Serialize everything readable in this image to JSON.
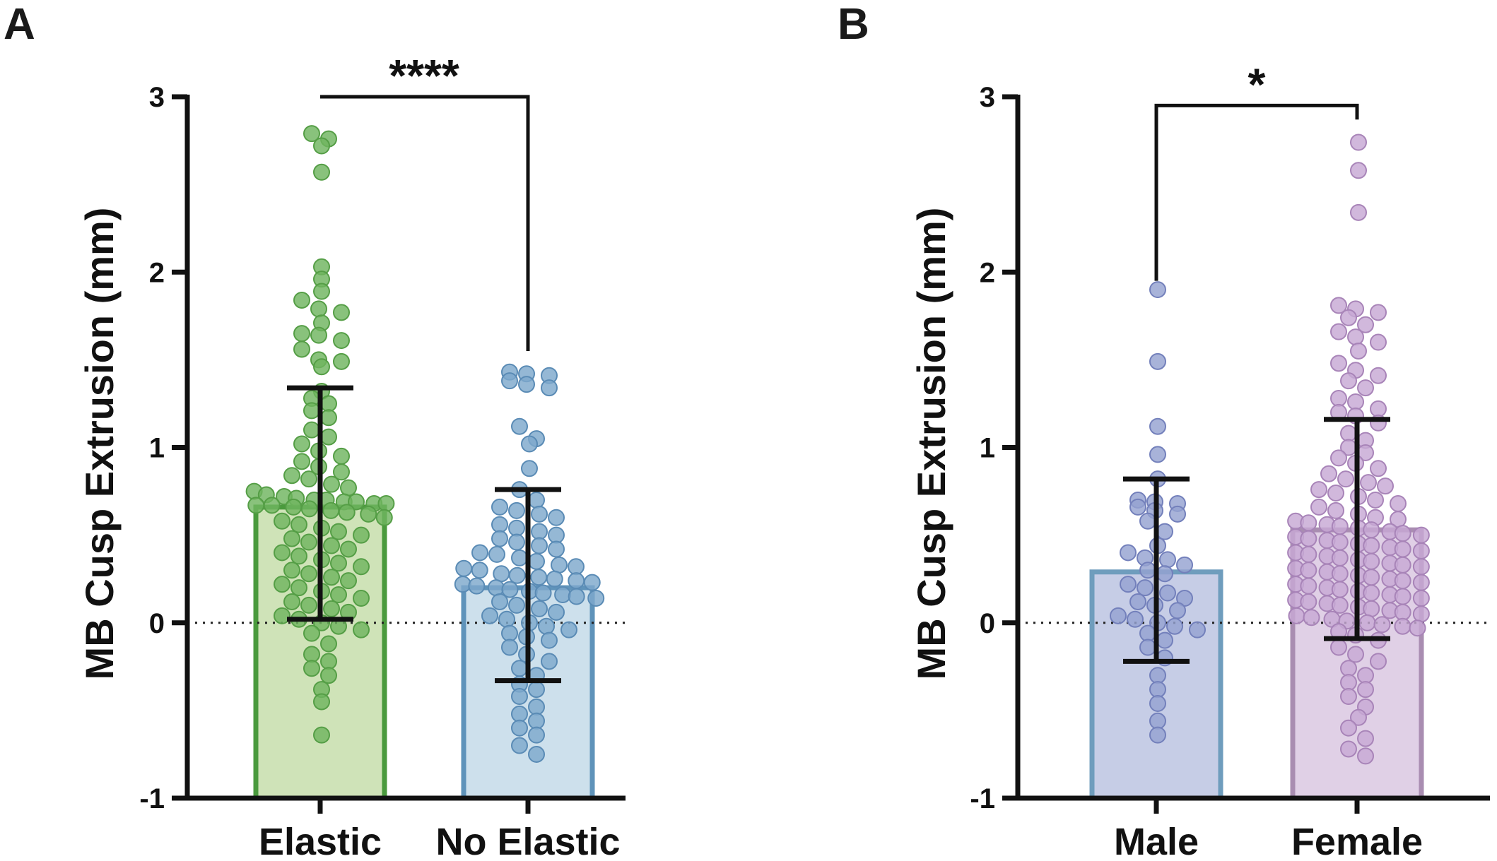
{
  "chart_data": [
    {
      "type": "bar",
      "panel": "A",
      "ylabel": "MB Cusp Extrusion (mm)",
      "ylim": [
        -1,
        3
      ],
      "yticks": [
        "-1",
        "0",
        "1",
        "2",
        "3"
      ],
      "reference_line": 0,
      "categories": [
        "Elastic",
        "No Elastic"
      ],
      "values": [
        0.66,
        0.2
      ],
      "error_low": [
        0.02,
        -0.33
      ],
      "error_high": [
        1.34,
        0.76
      ],
      "bar_colors": [
        {
          "fill": "#cfe3b8",
          "stroke": "#4a9a3d",
          "dot": "#6fb55f",
          "dot_stroke": "#559e46"
        },
        {
          "fill": "#cde0ec",
          "stroke": "#5f93ba",
          "dot": "#7ea8cc",
          "dot_stroke": "#5a8bb5"
        }
      ],
      "points": [
        [
          2.79,
          2.76,
          2.72,
          2.57,
          2.03,
          1.96,
          1.89,
          1.84,
          1.79,
          1.77,
          1.71,
          1.65,
          1.64,
          1.61,
          1.56,
          1.5,
          1.49,
          1.46,
          1.32,
          1.28,
          1.25,
          1.21,
          1.17,
          1.1,
          1.06,
          1.02,
          0.98,
          0.95,
          0.92,
          0.89,
          0.86,
          0.84,
          0.82,
          0.79,
          0.77,
          0.75,
          0.73,
          0.72,
          0.71,
          0.7,
          0.7,
          0.69,
          0.69,
          0.68,
          0.68,
          0.67,
          0.67,
          0.66,
          0.65,
          0.64,
          0.63,
          0.62,
          0.6,
          0.58,
          0.56,
          0.54,
          0.52,
          0.5,
          0.48,
          0.46,
          0.44,
          0.42,
          0.4,
          0.38,
          0.36,
          0.34,
          0.32,
          0.3,
          0.28,
          0.26,
          0.24,
          0.22,
          0.2,
          0.18,
          0.16,
          0.14,
          0.12,
          0.1,
          0.08,
          0.06,
          0.04,
          0.02,
          0.0,
          -0.02,
          -0.04,
          -0.06,
          -0.12,
          -0.18,
          -0.22,
          -0.26,
          -0.3,
          -0.38,
          -0.45,
          -0.64
        ],
        [
          1.43,
          1.42,
          1.41,
          1.38,
          1.36,
          1.34,
          1.12,
          1.05,
          1.02,
          0.88,
          0.76,
          0.7,
          0.66,
          0.64,
          0.62,
          0.6,
          0.56,
          0.54,
          0.52,
          0.5,
          0.48,
          0.46,
          0.44,
          0.42,
          0.4,
          0.39,
          0.37,
          0.35,
          0.33,
          0.32,
          0.31,
          0.3,
          0.28,
          0.27,
          0.26,
          0.25,
          0.24,
          0.23,
          0.22,
          0.21,
          0.2,
          0.19,
          0.18,
          0.17,
          0.16,
          0.15,
          0.14,
          0.12,
          0.1,
          0.08,
          0.06,
          0.04,
          0.02,
          0.0,
          -0.02,
          -0.04,
          -0.06,
          -0.08,
          -0.1,
          -0.14,
          -0.18,
          -0.22,
          -0.26,
          -0.3,
          -0.35,
          -0.38,
          -0.42,
          -0.48,
          -0.52,
          -0.56,
          -0.6,
          -0.64,
          -0.7,
          -0.75
        ]
      ],
      "comparison": {
        "from": 0,
        "to": 1,
        "label": "****",
        "y": 3.0,
        "tip_low": [
          3.0,
          1.55
        ]
      }
    },
    {
      "type": "bar",
      "panel": "B",
      "ylabel": "MB Cusp Extrusion (mm)",
      "ylim": [
        -1,
        3
      ],
      "yticks": [
        "-1",
        "0",
        "1",
        "2",
        "3"
      ],
      "reference_line": 0,
      "categories": [
        "Male",
        "Female"
      ],
      "values": [
        0.29,
        0.53
      ],
      "error_low": [
        -0.22,
        -0.09
      ],
      "error_high": [
        0.82,
        1.16
      ],
      "bar_colors": [
        {
          "fill": "#c6cde6",
          "stroke": "#6f9dbd",
          "dot": "#95a2d1",
          "dot_stroke": "#7380bb"
        },
        {
          "fill": "#e0d0e6",
          "stroke": "#a98db1",
          "dot": "#c7a8d4",
          "dot_stroke": "#a884b8"
        }
      ],
      "points": [
        [
          1.9,
          1.49,
          1.12,
          0.96,
          0.82,
          0.7,
          0.69,
          0.68,
          0.66,
          0.64,
          0.62,
          0.58,
          0.52,
          0.44,
          0.4,
          0.37,
          0.36,
          0.33,
          0.3,
          0.28,
          0.22,
          0.2,
          0.17,
          0.14,
          0.12,
          0.1,
          0.07,
          0.04,
          0.02,
          0.0,
          -0.02,
          -0.04,
          -0.06,
          -0.1,
          -0.14,
          -0.2,
          -0.3,
          -0.38,
          -0.46,
          -0.56,
          -0.64
        ],
        [
          2.74,
          2.58,
          2.34,
          1.81,
          1.79,
          1.77,
          1.74,
          1.7,
          1.66,
          1.63,
          1.6,
          1.55,
          1.48,
          1.44,
          1.41,
          1.38,
          1.34,
          1.28,
          1.26,
          1.22,
          1.2,
          1.18,
          1.14,
          1.08,
          1.04,
          1.0,
          0.97,
          0.94,
          0.91,
          0.88,
          0.85,
          0.82,
          0.8,
          0.78,
          0.76,
          0.74,
          0.72,
          0.7,
          0.68,
          0.66,
          0.64,
          0.62,
          0.6,
          0.59,
          0.58,
          0.57,
          0.56,
          0.55,
          0.54,
          0.53,
          0.52,
          0.51,
          0.5,
          0.49,
          0.48,
          0.47,
          0.46,
          0.45,
          0.44,
          0.43,
          0.42,
          0.41,
          0.4,
          0.39,
          0.38,
          0.37,
          0.36,
          0.35,
          0.34,
          0.33,
          0.32,
          0.31,
          0.3,
          0.29,
          0.28,
          0.27,
          0.26,
          0.25,
          0.24,
          0.23,
          0.22,
          0.21,
          0.2,
          0.19,
          0.18,
          0.17,
          0.16,
          0.15,
          0.14,
          0.13,
          0.12,
          0.11,
          0.1,
          0.09,
          0.08,
          0.07,
          0.06,
          0.05,
          0.04,
          0.03,
          0.02,
          0.01,
          0.0,
          -0.01,
          -0.02,
          -0.03,
          -0.05,
          -0.07,
          -0.1,
          -0.14,
          -0.18,
          -0.22,
          -0.26,
          -0.3,
          -0.34,
          -0.38,
          -0.42,
          -0.48,
          -0.54,
          -0.6,
          -0.66,
          -0.72,
          -0.76
        ]
      ],
      "comparison": {
        "from": 0,
        "to": 1,
        "label": "*",
        "y": 2.95,
        "tip_low": [
          1.95,
          2.87
        ]
      }
    }
  ]
}
